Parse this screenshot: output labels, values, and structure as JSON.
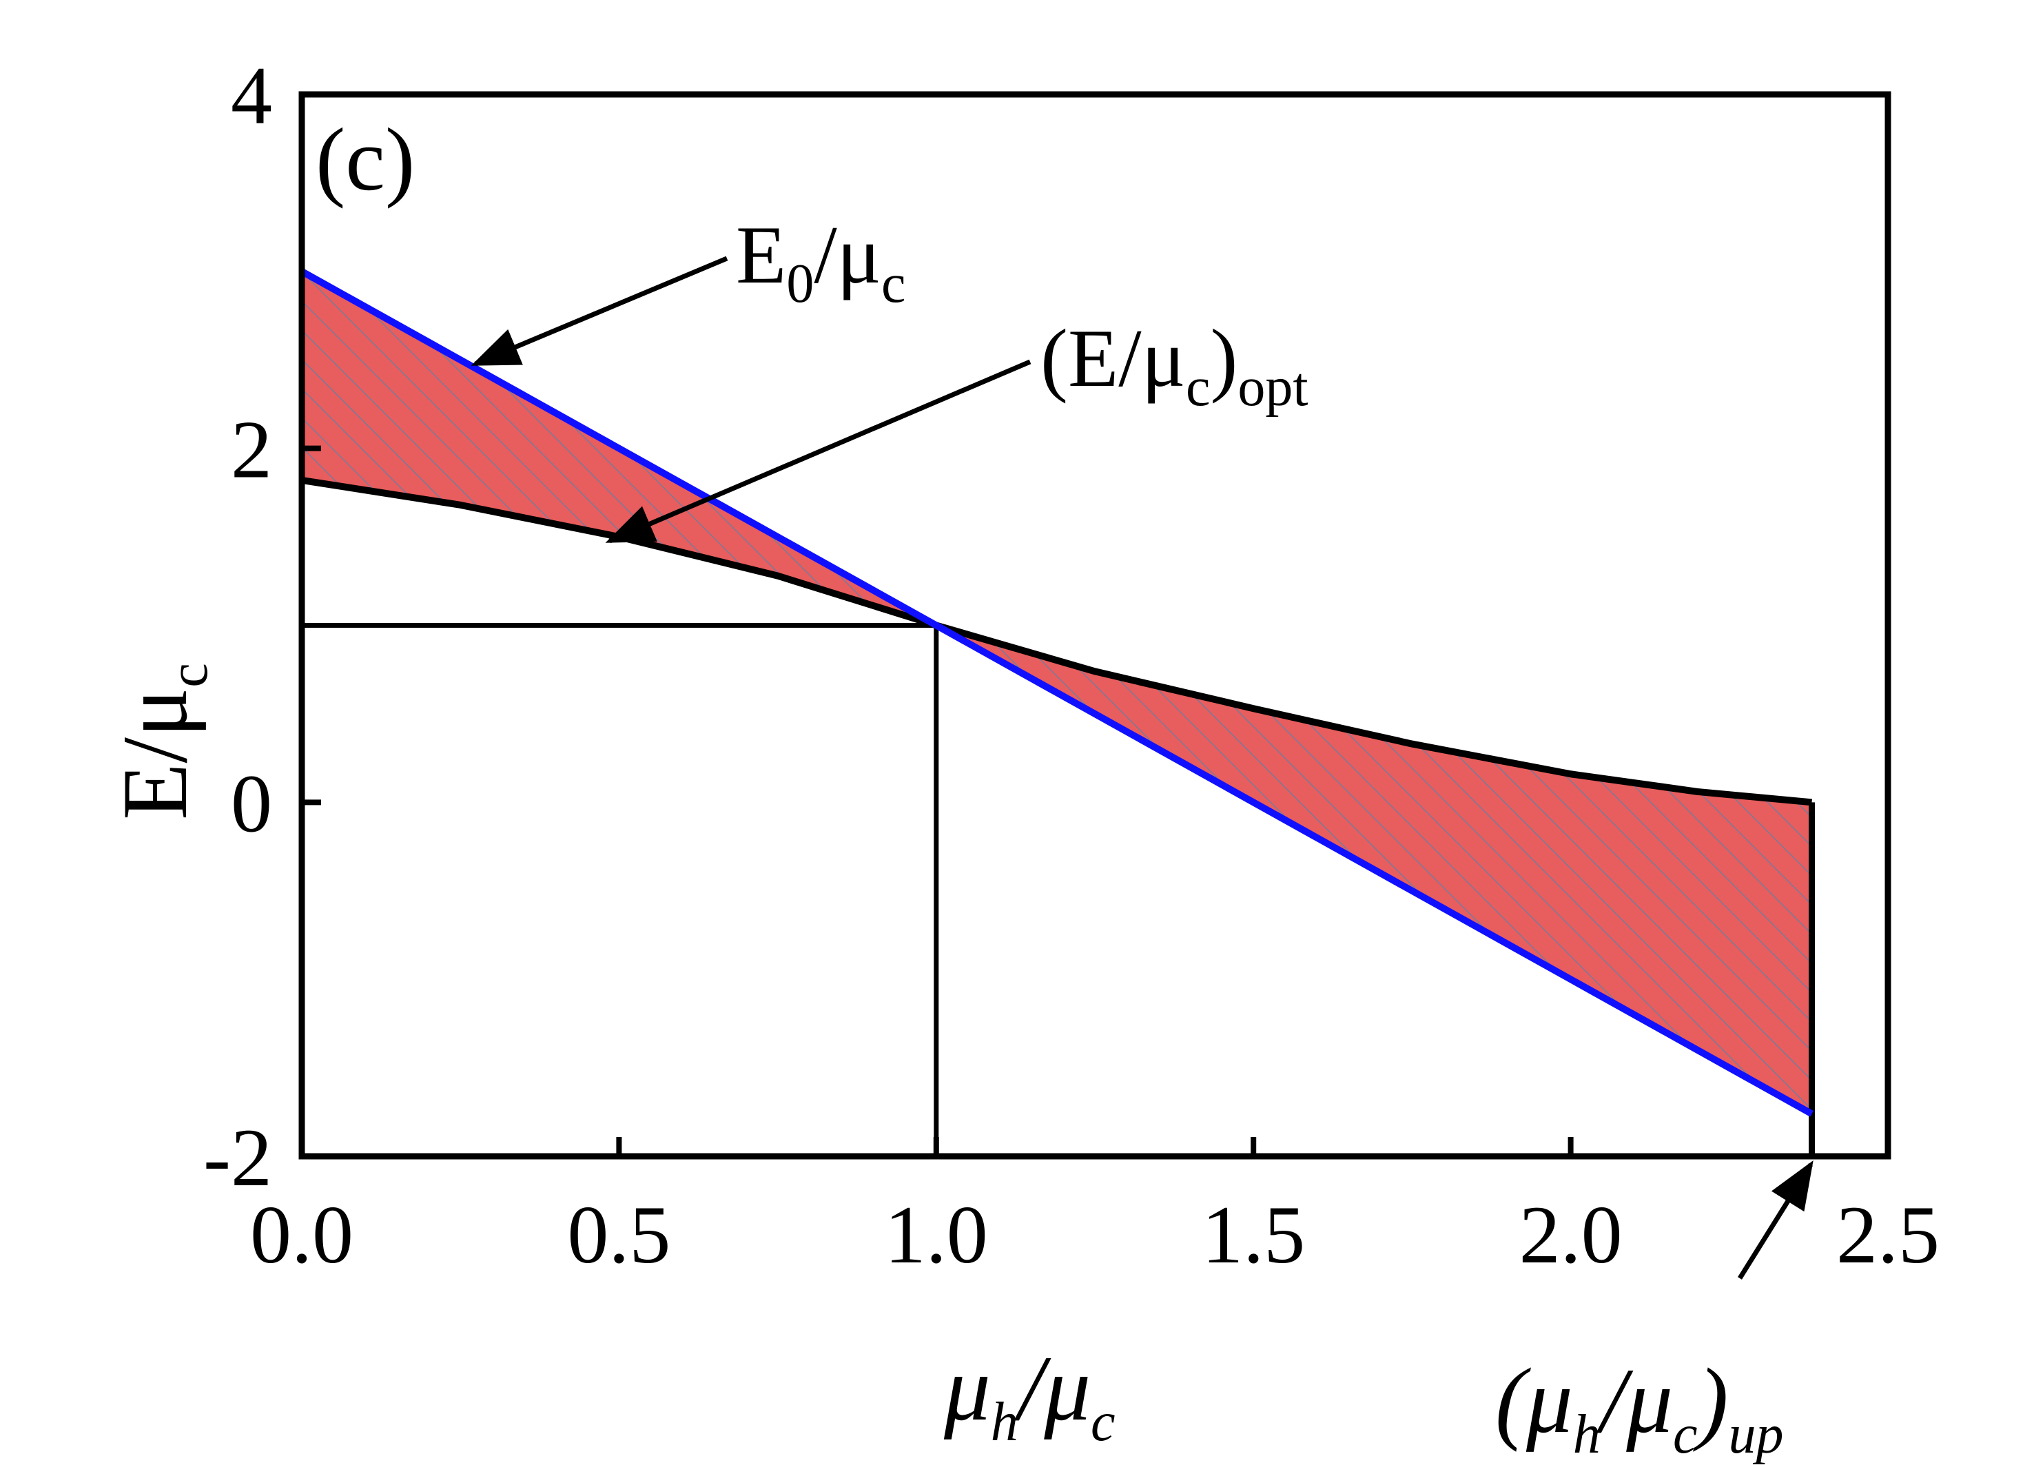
{
  "chart_data": {
    "type": "line",
    "panel_label": "(c)",
    "xlabel": {
      "base": "μ",
      "sub1": "h",
      "slash": "/",
      "base2": "μ",
      "sub2": "c"
    },
    "ylabel": {
      "base": "E/μ",
      "sub": "c"
    },
    "xlim": [
      0,
      2.5
    ],
    "ylim": [
      -2,
      4
    ],
    "xticks": [
      "0.0",
      "0.5",
      "1.0",
      "1.5",
      "2.0",
      "2.5"
    ],
    "xtick_values": [
      0,
      0.5,
      1.0,
      1.5,
      2.0,
      2.5
    ],
    "yticks": [
      "-2",
      "0",
      "2",
      "4"
    ],
    "ytick_values": [
      -2,
      0,
      2,
      4
    ],
    "series": [
      {
        "name": "E0/μc",
        "color": "#1010ff",
        "x": [
          0,
          2.38
        ],
        "y": [
          3.0,
          -1.76
        ]
      },
      {
        "name": "(E/μc)opt",
        "color": "#000000",
        "x": [
          0,
          0.25,
          0.5,
          0.75,
          1.0,
          1.25,
          1.5,
          1.75,
          2.0,
          2.2,
          2.38
        ],
        "y": [
          1.82,
          1.68,
          1.5,
          1.28,
          1.0,
          0.74,
          0.53,
          0.33,
          0.16,
          0.06,
          0.0
        ]
      }
    ],
    "reference_lines": {
      "x": 1.0,
      "y": 1.0
    },
    "fill_color": "#e85d5d",
    "hatch_color": "#7a7a9a",
    "x_up": 2.38,
    "annotations": {
      "e0": {
        "base": "E",
        "sub": "0",
        "rest": "/μ",
        "sub2": "c"
      },
      "opt": {
        "pre": "(E/μ",
        "sub": "c",
        "post": ")",
        "sub2": "opt"
      },
      "up": {
        "open": "(",
        "base": "μ",
        "sub1": "h",
        "slash": "/",
        "base2": "μ",
        "sub2": "c",
        "close": ")",
        "sub3": "up"
      }
    }
  }
}
